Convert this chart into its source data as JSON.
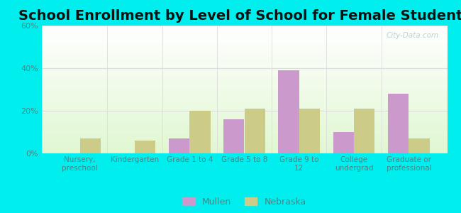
{
  "title": "School Enrollment by Level of School for Female Students",
  "categories": [
    "Nursery,\npreschool",
    "Kindergarten",
    "Grade 1 to 4",
    "Grade 5 to 8",
    "Grade 9 to\n12",
    "College\nundergrad",
    "Graduate or\nprofessional"
  ],
  "mullen": [
    0,
    0,
    7,
    16,
    39,
    10,
    28
  ],
  "nebraska": [
    7,
    6,
    20,
    21,
    21,
    21,
    7
  ],
  "mullen_color": "#cc99cc",
  "nebraska_color": "#cccc88",
  "ylim": [
    0,
    60
  ],
  "yticks": [
    0,
    20,
    40,
    60
  ],
  "ytick_labels": [
    "0%",
    "20%",
    "40%",
    "60%"
  ],
  "background_color": "#00eeee",
  "title_fontsize": 14,
  "bar_width": 0.38,
  "legend_labels": [
    "Mullen",
    "Nebraska"
  ],
  "tick_color": "#448888",
  "grid_color": "#dddddd",
  "watermark": "City-Data.com"
}
